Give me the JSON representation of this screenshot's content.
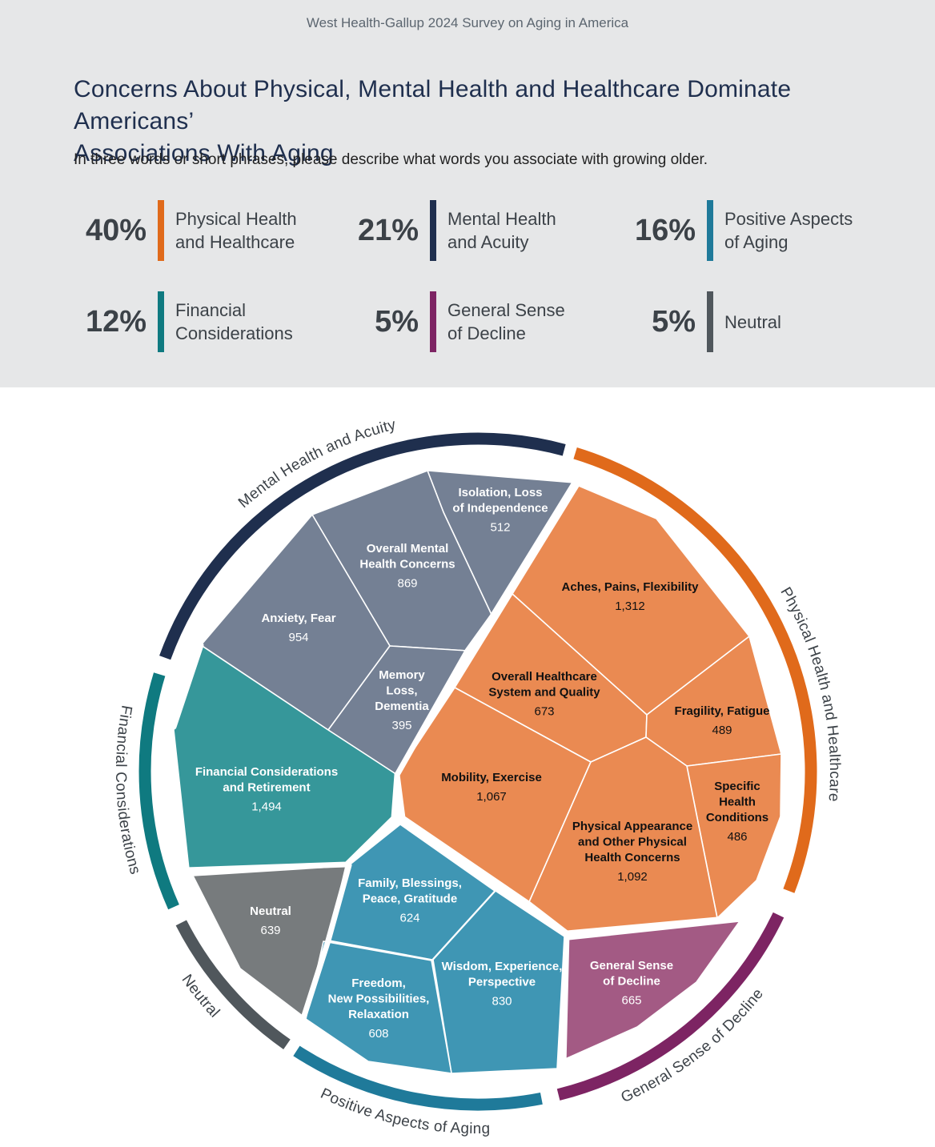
{
  "header": {
    "survey": "West Health-Gallup 2024 Survey on Aging in America",
    "title_line1": "Concerns About Physical, Mental Health and Healthcare Dominate Americans’",
    "title_line2": "Associations With Aging",
    "question": "In three words or short phrases, please describe what words you associate with growing older."
  },
  "stats": [
    {
      "pct": "40%",
      "line1": "Physical Health",
      "line2": "and Healthcare",
      "color": "#e06a1b"
    },
    {
      "pct": "21%",
      "line1": "Mental Health",
      "line2": "and Acuity",
      "color": "#1f2f4e"
    },
    {
      "pct": "16%",
      "line1": "Positive Aspects",
      "line2": "of Aging",
      "color": "#1f7a9a"
    },
    {
      "pct": "12%",
      "line1": "Financial",
      "line2": "Considerations",
      "color": "#0f7a80"
    },
    {
      "pct": "5%",
      "line1": "General Sense",
      "line2": "of Decline",
      "color": "#7d2463"
    },
    {
      "pct": "5%",
      "line1": "Neutral",
      "line2": "",
      "color": "#50575c"
    }
  ],
  "chart_data": {
    "type": "voronoi-treemap",
    "categories": [
      {
        "name": "Mental Health and Acuity",
        "color": "#1f2f4e"
      },
      {
        "name": "Physical Health and Healthcare",
        "color": "#e06a1b"
      },
      {
        "name": "General Sense of Decline",
        "color": "#7d2463"
      },
      {
        "name": "Positive Aspects of Aging",
        "color": "#1f7a9a"
      },
      {
        "name": "Neutral",
        "color": "#50575c"
      },
      {
        "name": "Financial Considerations",
        "color": "#0f7a80"
      }
    ],
    "cells": [
      {
        "category": "Mental Health and Acuity",
        "label": [
          "Isolation, Loss",
          "of Independence"
        ],
        "value": "512",
        "color": "#748094",
        "text_color": "#ffffff"
      },
      {
        "category": "Mental Health and Acuity",
        "label": [
          "Overall Mental",
          "Health Concerns"
        ],
        "value": "869",
        "color": "#748094",
        "text_color": "#ffffff"
      },
      {
        "category": "Mental Health and Acuity",
        "label": [
          "Anxiety, Fear"
        ],
        "value": "954",
        "color": "#748094",
        "text_color": "#ffffff"
      },
      {
        "category": "Mental Health and Acuity",
        "label": [
          "Memory",
          "Loss,",
          "Dementia"
        ],
        "value": "395",
        "color": "#748094",
        "text_color": "#ffffff"
      },
      {
        "category": "Physical Health and Healthcare",
        "label": [
          "Aches, Pains, Flexibility"
        ],
        "value": "1,312",
        "color": "#ea8a52",
        "text_color": "#111111"
      },
      {
        "category": "Physical Health and Healthcare",
        "label": [
          "Overall Healthcare",
          "System and Quality"
        ],
        "value": "673",
        "color": "#ea8a52",
        "text_color": "#111111"
      },
      {
        "category": "Physical Health and Healthcare",
        "label": [
          "Fragility, Fatigue"
        ],
        "value": "489",
        "color": "#ea8a52",
        "text_color": "#111111"
      },
      {
        "category": "Physical Health and Healthcare",
        "label": [
          "Mobility, Exercise"
        ],
        "value": "1,067",
        "color": "#ea8a52",
        "text_color": "#111111"
      },
      {
        "category": "Physical Health and Healthcare",
        "label": [
          "Specific",
          "Health",
          "Conditions"
        ],
        "value": "486",
        "color": "#ea8a52",
        "text_color": "#111111"
      },
      {
        "category": "Physical Health and Healthcare",
        "label": [
          "Physical Appearance",
          "and Other Physical",
          "Health Concerns"
        ],
        "value": "1,092",
        "color": "#ea8a52",
        "text_color": "#111111"
      },
      {
        "category": "Financial Considerations",
        "label": [
          "Financial Considerations",
          "and Retirement"
        ],
        "value": "1,494",
        "color": "#36979a",
        "text_color": "#ffffff"
      },
      {
        "category": "Neutral",
        "label": [
          "Neutral"
        ],
        "value": "639",
        "color": "#777b7d",
        "text_color": "#ffffff"
      },
      {
        "category": "Positive Aspects of Aging",
        "label": [
          "Family, Blessings,",
          "Peace, Gratitude"
        ],
        "value": "624",
        "color": "#3f96b4",
        "text_color": "#ffffff"
      },
      {
        "category": "Positive Aspects of Aging",
        "label": [
          "Wisdom, Experience,",
          "Perspective"
        ],
        "value": "830",
        "color": "#3f96b4",
        "text_color": "#ffffff"
      },
      {
        "category": "Positive Aspects of Aging",
        "label": [
          "Freedom,",
          "New Possibilities,",
          "Relaxation"
        ],
        "value": "608",
        "color": "#3f96b4",
        "text_color": "#ffffff"
      },
      {
        "category": "General Sense of Decline",
        "label": [
          "General Sense",
          "of Decline"
        ],
        "value": "665",
        "color": "#a35a84",
        "text_color": "#ffffff"
      }
    ]
  }
}
